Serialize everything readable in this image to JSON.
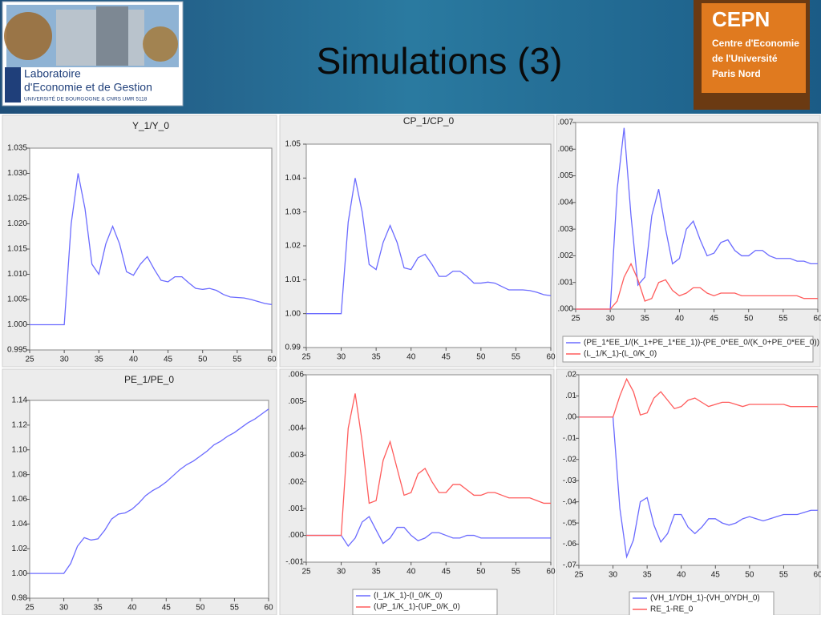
{
  "header": {
    "title": "Simulations (3)",
    "left_logo": {
      "line1": "Laboratoire",
      "line2": "d'Economie et de Gestion",
      "line3": "UNIVERSITÉ DE BOURGOGNE & CNRS UMR 5118"
    },
    "right_logo": {
      "name": "CEPN",
      "line1": "Centre d'Economie",
      "line2": "de l'Université",
      "line3": "Paris Nord"
    }
  },
  "chart_data": [
    {
      "type": "line",
      "title": "Y_1/Y_0",
      "color": "#6b6bff",
      "x": [
        25,
        26,
        27,
        28,
        29,
        30,
        31,
        32,
        33,
        34,
        35,
        36,
        37,
        38,
        39,
        40,
        41,
        42,
        43,
        44,
        45,
        46,
        47,
        48,
        49,
        50,
        51,
        52,
        53,
        54,
        55,
        56,
        57,
        58,
        59,
        60
      ],
      "values": [
        1.0,
        1.0,
        1.0,
        1.0,
        1.0,
        1.0,
        1.02,
        1.03,
        1.023,
        1.012,
        1.01,
        1.016,
        1.0195,
        1.016,
        1.0105,
        1.0098,
        1.012,
        1.0135,
        1.011,
        1.0088,
        1.0085,
        1.0095,
        1.0095,
        1.0083,
        1.0072,
        1.007,
        1.0072,
        1.0068,
        1.006,
        1.0055,
        1.0054,
        1.0053,
        1.005,
        1.0046,
        1.0042,
        1.004
      ],
      "xlim": [
        25,
        60
      ],
      "xticks": [
        25,
        30,
        35,
        40,
        45,
        50,
        55,
        60
      ],
      "ylim": [
        0.995,
        1.035
      ],
      "yticks": [
        0.995,
        {
          "value": 1.0,
          "label": "1.000"
        },
        1.005,
        {
          "value": 1.01,
          "label": "1.010"
        },
        1.015,
        {
          "value": 1.02,
          "label": "1.020"
        },
        1.025,
        {
          "value": 1.03,
          "label": "1.030"
        },
        1.035
      ]
    },
    {
      "type": "line",
      "title": "CP_1/CP_0",
      "color": "#6b6bff",
      "x": [
        25,
        26,
        27,
        28,
        29,
        30,
        31,
        32,
        33,
        34,
        35,
        36,
        37,
        38,
        39,
        40,
        41,
        42,
        43,
        44,
        45,
        46,
        47,
        48,
        49,
        50,
        51,
        52,
        53,
        54,
        55,
        56,
        57,
        58,
        59,
        60
      ],
      "values": [
        1.0,
        1.0,
        1.0,
        1.0,
        1.0,
        1.0,
        1.027,
        1.04,
        1.03,
        1.0145,
        1.013,
        1.021,
        1.026,
        1.021,
        1.0135,
        1.013,
        1.0165,
        1.0175,
        1.0145,
        1.011,
        1.011,
        1.0125,
        1.0125,
        1.011,
        1.009,
        1.009,
        1.0093,
        1.009,
        1.008,
        1.007,
        1.007,
        1.007,
        1.0068,
        1.0063,
        1.0056,
        1.0053
      ],
      "xlim": [
        25,
        60
      ],
      "xticks": [
        25,
        30,
        35,
        40,
        45,
        50,
        55,
        60
      ],
      "ylim": [
        0.99,
        1.05
      ],
      "yticks": [
        0.99,
        {
          "value": 1.0,
          "label": "1.00"
        },
        1.01,
        1.02,
        1.03,
        1.04,
        1.05
      ]
    },
    {
      "type": "line",
      "x": [
        25,
        26,
        27,
        28,
        29,
        30,
        31,
        32,
        33,
        34,
        35,
        36,
        37,
        38,
        39,
        40,
        41,
        42,
        43,
        44,
        45,
        46,
        47,
        48,
        49,
        50,
        51,
        52,
        53,
        54,
        55,
        56,
        57,
        58,
        59,
        60
      ],
      "series": [
        {
          "name": "(PE_1*EE_1/(K_1+PE_1*EE_1))-(PE_0*EE_0/(K_0+PE_0*EE_0))",
          "color": "#6b6bff",
          "values": [
            0,
            0,
            0,
            0,
            0,
            0,
            0.0045,
            0.0068,
            0.0035,
            0.0009,
            0.0012,
            0.0035,
            0.0045,
            0.003,
            0.0017,
            0.0019,
            0.003,
            0.0033,
            0.0026,
            0.002,
            0.0021,
            0.0025,
            0.0026,
            0.0022,
            0.002,
            0.002,
            0.0022,
            0.0022,
            0.002,
            0.0019,
            0.0019,
            0.0019,
            0.0018,
            0.0018,
            0.0017,
            0.0017
          ]
        },
        {
          "name": "(L_1/K_1)-(L_0/K_0)",
          "color": "#ff5c5c",
          "values": [
            0,
            0,
            0,
            0,
            0,
            0,
            0.0003,
            0.0012,
            0.0017,
            0.0011,
            0.0003,
            0.0004,
            0.001,
            0.0011,
            0.0007,
            0.0005,
            0.0006,
            0.0008,
            0.0008,
            0.0006,
            0.0005,
            0.0006,
            0.0006,
            0.0006,
            0.0005,
            0.0005,
            0.0005,
            0.0005,
            0.0005,
            0.0005,
            0.0005,
            0.0005,
            0.0005,
            0.0004,
            0.0004,
            0.0004
          ]
        }
      ],
      "xlim": [
        25,
        60
      ],
      "xticks": [
        25,
        30,
        35,
        40,
        45,
        50,
        55,
        60
      ],
      "ylim": [
        0,
        0.007
      ],
      "yticks": [
        {
          "value": 0,
          "label": ".000"
        },
        {
          "value": 0.001,
          "label": ".001"
        },
        {
          "value": 0.002,
          "label": ".002"
        },
        {
          "value": 0.003,
          "label": ".003"
        },
        {
          "value": 0.004,
          "label": ".004"
        },
        {
          "value": 0.005,
          "label": ".005"
        },
        {
          "value": 0.006,
          "label": ".006"
        },
        {
          "value": 0.007,
          "label": ".007"
        }
      ]
    },
    {
      "type": "line",
      "title": "PE_1/PE_0",
      "color": "#6b6bff",
      "x": [
        25,
        26,
        27,
        28,
        29,
        30,
        31,
        32,
        33,
        34,
        35,
        36,
        37,
        38,
        39,
        40,
        41,
        42,
        43,
        44,
        45,
        46,
        47,
        48,
        49,
        50,
        51,
        52,
        53,
        54,
        55,
        56,
        57,
        58,
        59,
        60
      ],
      "values": [
        1.0,
        1.0,
        1.0,
        1.0,
        1.0,
        1.0,
        1.008,
        1.022,
        1.029,
        1.027,
        1.028,
        1.035,
        1.044,
        1.048,
        1.049,
        1.052,
        1.057,
        1.063,
        1.067,
        1.07,
        1.074,
        1.079,
        1.084,
        1.088,
        1.091,
        1.095,
        1.099,
        1.104,
        1.107,
        1.111,
        1.114,
        1.118,
        1.122,
        1.125,
        1.129,
        1.133
      ],
      "xlim": [
        25,
        60
      ],
      "xticks": [
        25,
        30,
        35,
        40,
        45,
        50,
        55,
        60
      ],
      "ylim": [
        0.98,
        1.14
      ],
      "yticks": [
        0.98,
        {
          "value": 1.0,
          "label": "1.00"
        },
        1.02,
        1.04,
        1.06,
        1.08,
        {
          "value": 1.1,
          "label": "1.10"
        },
        1.12,
        1.14
      ]
    },
    {
      "type": "line",
      "x": [
        25,
        26,
        27,
        28,
        29,
        30,
        31,
        32,
        33,
        34,
        35,
        36,
        37,
        38,
        39,
        40,
        41,
        42,
        43,
        44,
        45,
        46,
        47,
        48,
        49,
        50,
        51,
        52,
        53,
        54,
        55,
        56,
        57,
        58,
        59,
        60
      ],
      "series": [
        {
          "name": "(I_1/K_1)-(I_0/K_0)",
          "color": "#6b6bff",
          "values": [
            0,
            0,
            0,
            0,
            0,
            0,
            -0.0004,
            -0.0001,
            0.0005,
            0.0007,
            0.0002,
            -0.0003,
            -0.0001,
            0.0003,
            0.0003,
            0,
            -0.0002,
            -0.0001,
            0.0001,
            0.0001,
            0,
            -0.0001,
            -0.0001,
            0,
            0,
            -0.0001,
            -0.0001,
            -0.0001,
            -0.0001,
            -0.0001,
            -0.0001,
            -0.0001,
            -0.0001,
            -0.0001,
            -0.0001,
            -0.0001
          ]
        },
        {
          "name": "(UP_1/K_1)-(UP_0/K_0)",
          "color": "#ff5c5c",
          "values": [
            0,
            0,
            0,
            0,
            0,
            0,
            0.004,
            0.0053,
            0.0035,
            0.0012,
            0.0013,
            0.0028,
            0.0035,
            0.0025,
            0.0015,
            0.0016,
            0.0023,
            0.0025,
            0.002,
            0.0016,
            0.0016,
            0.0019,
            0.0019,
            0.0017,
            0.0015,
            0.0015,
            0.0016,
            0.0016,
            0.0015,
            0.0014,
            0.0014,
            0.0014,
            0.0014,
            0.0013,
            0.0012,
            0.0012
          ]
        }
      ],
      "xlim": [
        25,
        60
      ],
      "xticks": [
        25,
        30,
        35,
        40,
        45,
        50,
        55,
        60
      ],
      "ylim": [
        -0.001,
        0.006
      ],
      "yticks": [
        {
          "value": -0.001,
          "label": "-.001"
        },
        {
          "value": 0,
          "label": ".000"
        },
        {
          "value": 0.001,
          "label": ".001"
        },
        {
          "value": 0.002,
          "label": ".002"
        },
        {
          "value": 0.003,
          "label": ".003"
        },
        {
          "value": 0.004,
          "label": ".004"
        },
        {
          "value": 0.005,
          "label": ".005"
        },
        {
          "value": 0.006,
          "label": ".006"
        }
      ]
    },
    {
      "type": "line",
      "x": [
        25,
        26,
        27,
        28,
        29,
        30,
        31,
        32,
        33,
        34,
        35,
        36,
        37,
        38,
        39,
        40,
        41,
        42,
        43,
        44,
        45,
        46,
        47,
        48,
        49,
        50,
        51,
        52,
        53,
        54,
        55,
        56,
        57,
        58,
        59,
        60
      ],
      "series": [
        {
          "name": "(VH_1/YDH_1)-(VH_0/YDH_0)",
          "color": "#6b6bff",
          "values": [
            0,
            0,
            0,
            0,
            0,
            0,
            -0.043,
            -0.066,
            -0.058,
            -0.04,
            -0.038,
            -0.051,
            -0.059,
            -0.055,
            -0.046,
            -0.046,
            -0.052,
            -0.055,
            -0.052,
            -0.048,
            -0.048,
            -0.05,
            -0.051,
            -0.05,
            -0.048,
            -0.047,
            -0.048,
            -0.049,
            -0.048,
            -0.047,
            -0.046,
            -0.046,
            -0.046,
            -0.045,
            -0.044,
            -0.044
          ]
        },
        {
          "name": "RE_1-RE_0",
          "color": "#ff5c5c",
          "values": [
            0,
            0,
            0,
            0,
            0,
            0,
            0.01,
            0.018,
            0.012,
            0.001,
            0.002,
            0.009,
            0.012,
            0.008,
            0.004,
            0.005,
            0.008,
            0.009,
            0.007,
            0.005,
            0.006,
            0.007,
            0.007,
            0.006,
            0.005,
            0.006,
            0.006,
            0.006,
            0.006,
            0.006,
            0.006,
            0.005,
            0.005,
            0.005,
            0.005,
            0.005
          ]
        }
      ],
      "xlim": [
        25,
        60
      ],
      "xticks": [
        25,
        30,
        35,
        40,
        45,
        50,
        55,
        60
      ],
      "ylim": [
        -0.07,
        0.02
      ],
      "yticks": [
        {
          "value": -0.07,
          "label": "-.07"
        },
        {
          "value": -0.06,
          "label": "-.06"
        },
        {
          "value": -0.05,
          "label": "-.05"
        },
        {
          "value": -0.04,
          "label": "-.04"
        },
        {
          "value": -0.03,
          "label": "-.03"
        },
        {
          "value": -0.02,
          "label": "-.02"
        },
        {
          "value": -0.01,
          "label": "-.01"
        },
        {
          "value": 0,
          "label": ".00"
        },
        {
          "value": 0.01,
          "label": ".01"
        },
        {
          "value": 0.02,
          "label": ".02"
        }
      ]
    }
  ]
}
